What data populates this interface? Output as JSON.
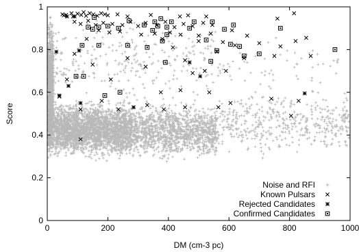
{
  "chart_data": {
    "type": "scatter",
    "title": "",
    "xlabel": "DM (cm-3 pc)",
    "ylabel": "Score",
    "xlim": [
      0,
      1000
    ],
    "ylim": [
      0,
      1
    ],
    "xticks": [
      0,
      200,
      400,
      600,
      800,
      1000
    ],
    "yticks": [
      0,
      0.2,
      0.4,
      0.6,
      0.8,
      1
    ],
    "grid": false,
    "legend_position": "bottom-right",
    "series": [
      {
        "name": "Noise and RFI",
        "marker": "plus",
        "color": "#b8b8b8",
        "density_regions": [
          {
            "x": [
              0,
              20
            ],
            "y": [
              0.25,
              1.0
            ],
            "count": 900
          },
          {
            "x": [
              0,
              280
            ],
            "y": [
              0.27,
              0.58
            ],
            "count": 2600
          },
          {
            "x": [
              280,
              560
            ],
            "y": [
              0.26,
              0.58
            ],
            "count": 1200
          },
          {
            "x": [
              20,
              560
            ],
            "y": [
              0.52,
              0.98
            ],
            "count": 260
          },
          {
            "x": [
              560,
              1000
            ],
            "y": [
              0.28,
              0.64
            ],
            "count": 450
          },
          {
            "x": [
              560,
              1000
            ],
            "y": [
              0.55,
              0.9
            ],
            "count": 60
          }
        ]
      },
      {
        "name": "Known Pulsars",
        "marker": "x",
        "color": "#000000",
        "points": [
          [
            50,
            0.965
          ],
          [
            55,
            0.96
          ],
          [
            62,
            0.962
          ],
          [
            80,
            0.97
          ],
          [
            85,
            0.955
          ],
          [
            100,
            0.968
          ],
          [
            112,
            0.962
          ],
          [
            120,
            0.975
          ],
          [
            128,
            0.958
          ],
          [
            140,
            0.97
          ],
          [
            152,
            0.965
          ],
          [
            165,
            0.958
          ],
          [
            178,
            0.97
          ],
          [
            190,
            0.965
          ],
          [
            200,
            0.96
          ],
          [
            232,
            0.965
          ],
          [
            265,
            0.955
          ],
          [
            342,
            0.962
          ],
          [
            438,
            0.955
          ],
          [
            465,
            0.96
          ],
          [
            525,
            0.955
          ],
          [
            760,
            0.945
          ],
          [
            815,
            0.97
          ],
          [
            90,
            0.93
          ],
          [
            110,
            0.92
          ],
          [
            135,
            0.935
          ],
          [
            160,
            0.915
          ],
          [
            185,
            0.925
          ],
          [
            215,
            0.92
          ],
          [
            248,
            0.915
          ],
          [
            275,
            0.93
          ],
          [
            300,
            0.91
          ],
          [
            325,
            0.925
          ],
          [
            362,
            0.915
          ],
          [
            390,
            0.93
          ],
          [
            420,
            0.905
          ],
          [
            450,
            0.92
          ],
          [
            480,
            0.91
          ],
          [
            515,
            0.925
          ],
          [
            545,
            0.915
          ],
          [
            170,
            0.89
          ],
          [
            205,
            0.88
          ],
          [
            240,
            0.885
          ],
          [
            310,
            0.87
          ],
          [
            355,
            0.875
          ],
          [
            405,
            0.88
          ],
          [
            440,
            0.87
          ],
          [
            500,
            0.865
          ],
          [
            540,
            0.875
          ],
          [
            610,
            0.89
          ],
          [
            660,
            0.865
          ],
          [
            855,
            0.855
          ],
          [
            130,
            0.85
          ],
          [
            380,
            0.85
          ],
          [
            500,
            0.84
          ],
          [
            580,
            0.835
          ],
          [
            620,
            0.82
          ],
          [
            700,
            0.83
          ],
          [
            770,
            0.815
          ],
          [
            820,
            0.84
          ],
          [
            870,
            0.77
          ],
          [
            415,
            0.81
          ],
          [
            560,
            0.79
          ],
          [
            650,
            0.76
          ],
          [
            750,
            0.77
          ],
          [
            90,
            0.78
          ],
          [
            150,
            0.73
          ],
          [
            265,
            0.76
          ],
          [
            325,
            0.72
          ],
          [
            455,
            0.75
          ],
          [
            520,
            0.7
          ],
          [
            480,
            0.69
          ],
          [
            590,
            0.7
          ],
          [
            210,
            0.66
          ],
          [
            375,
            0.6
          ],
          [
            440,
            0.61
          ],
          [
            535,
            0.6
          ],
          [
            180,
            0.56
          ],
          [
            330,
            0.54
          ],
          [
            455,
            0.53
          ],
          [
            605,
            0.55
          ],
          [
            740,
            0.57
          ],
          [
            830,
            0.56
          ],
          [
            235,
            0.52
          ],
          [
            385,
            0.52
          ],
          [
            565,
            0.53
          ],
          [
            805,
            0.49
          ],
          [
            110,
            0.52
          ],
          [
            40,
            0.58
          ],
          [
            65,
            0.66
          ],
          [
            110,
            0.38
          ]
        ]
      },
      {
        "name": "Rejected Candidates",
        "marker": "star",
        "color": "#000000",
        "points": [
          [
            30,
            0.79
          ],
          [
            65,
            0.955
          ],
          [
            90,
            0.955
          ],
          [
            40,
            0.585
          ],
          [
            110,
            0.55
          ],
          [
            285,
            0.53
          ],
          [
            470,
            0.74
          ],
          [
            505,
            0.675
          ],
          [
            850,
            0.595
          ],
          [
            105,
            0.795
          ],
          [
            70,
            0.63
          ]
        ]
      },
      {
        "name": "Confirmed Candidates",
        "marker": "square",
        "color": "#000000",
        "points": [
          [
            155,
            0.95
          ],
          [
            150,
            0.895
          ],
          [
            135,
            0.905
          ],
          [
            170,
            0.905
          ],
          [
            200,
            0.91
          ],
          [
            235,
            0.9
          ],
          [
            270,
            0.935
          ],
          [
            320,
            0.915
          ],
          [
            348,
            0.89
          ],
          [
            355,
            0.93
          ],
          [
            365,
            0.91
          ],
          [
            375,
            0.945
          ],
          [
            395,
            0.87
          ],
          [
            395,
            0.905
          ],
          [
            410,
            0.93
          ],
          [
            470,
            0.9
          ],
          [
            485,
            0.93
          ],
          [
            525,
            0.845
          ],
          [
            545,
            0.93
          ],
          [
            585,
            0.895
          ],
          [
            615,
            0.915
          ],
          [
            635,
            0.815
          ],
          [
            540,
            0.745
          ],
          [
            560,
            0.795
          ],
          [
            605,
            0.825
          ],
          [
            650,
            0.77
          ],
          [
            700,
            0.78
          ],
          [
            770,
            0.9
          ],
          [
            950,
            0.8
          ],
          [
            115,
            0.82
          ],
          [
            170,
            0.82
          ],
          [
            265,
            0.82
          ],
          [
            330,
            0.81
          ],
          [
            380,
            0.84
          ],
          [
            390,
            0.74
          ],
          [
            95,
            0.675
          ],
          [
            120,
            0.675
          ],
          [
            190,
            0.585
          ],
          [
            240,
            0.6
          ]
        ]
      }
    ]
  }
}
